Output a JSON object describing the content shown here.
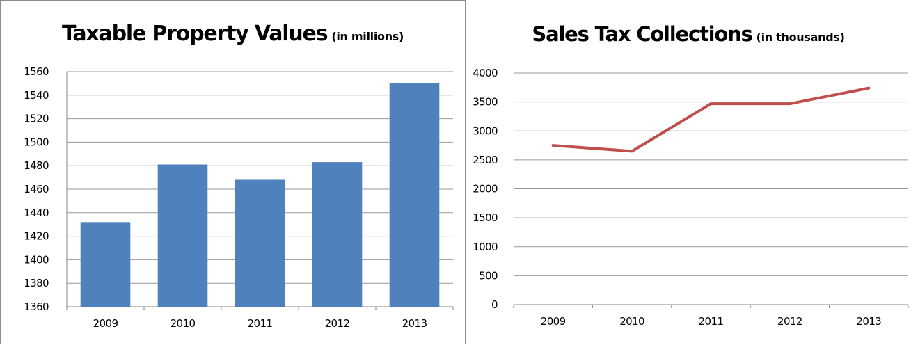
{
  "charts": {
    "left": {
      "title": "Taxable Property Values",
      "subtitle": "(in millions)"
    },
    "right": {
      "title": "Sales Tax Collections",
      "subtitle": "(in thousands)"
    }
  },
  "chart_data": [
    {
      "type": "bar",
      "title": "Taxable Property Values (in millions)",
      "categories": [
        "2009",
        "2010",
        "2011",
        "2012",
        "2013"
      ],
      "values": [
        1432,
        1481,
        1468,
        1483,
        1550
      ],
      "ylim": [
        1360,
        1560
      ],
      "yticks": [
        1360,
        1380,
        1400,
        1420,
        1440,
        1460,
        1480,
        1500,
        1520,
        1540,
        1560
      ],
      "xlabel": "",
      "ylabel": "",
      "grid": true,
      "color": "#4f81bd"
    },
    {
      "type": "line",
      "title": "Sales Tax Collections (in thousands)",
      "categories": [
        "2009",
        "2010",
        "2011",
        "2012",
        "2013"
      ],
      "values": [
        2750,
        2650,
        3470,
        3470,
        3740
      ],
      "ylim": [
        0,
        4000
      ],
      "yticks": [
        0,
        500,
        1000,
        1500,
        2000,
        2500,
        3000,
        3500,
        4000
      ],
      "xlabel": "",
      "ylabel": "",
      "grid": true,
      "color": "#c0504d"
    }
  ]
}
